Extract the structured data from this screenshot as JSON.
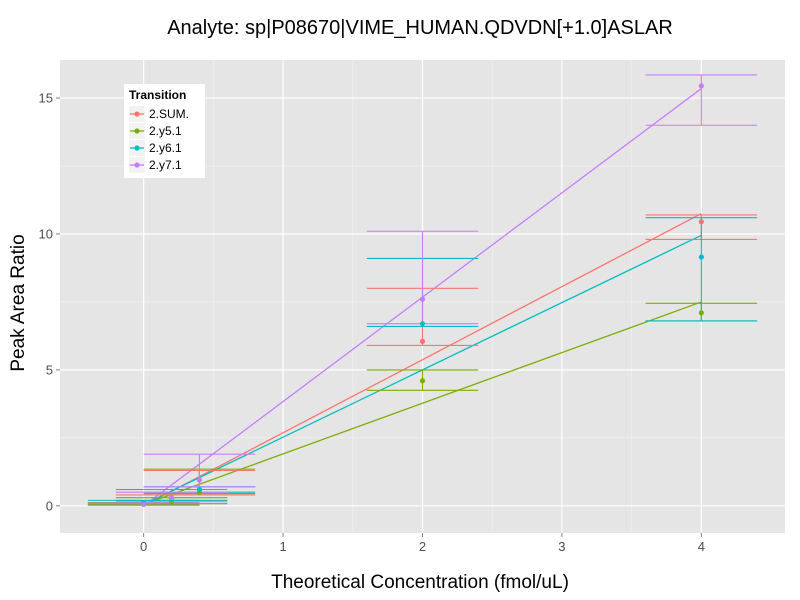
{
  "chart_data": {
    "type": "scatter",
    "title": "Analyte: sp|P08670|VIME_HUMAN.QDVDN[+1.0]ASLAR",
    "xlabel": "Theoretical Concentration (fmol/uL)",
    "ylabel": "Peak Area Ratio",
    "xlim": [
      -0.6,
      4.6
    ],
    "ylim": [
      -1.0,
      16.4
    ],
    "x_ticks": [
      0,
      1,
      2,
      3,
      4
    ],
    "x_tick_labels": [
      "0",
      "1",
      "2",
      "3",
      "4"
    ],
    "y_ticks": [
      0,
      5,
      10,
      15
    ],
    "y_tick_labels": [
      "0",
      "5",
      "10",
      "15"
    ],
    "grid": true,
    "legend": {
      "title": "Transition",
      "placement": "top-left"
    },
    "series": [
      {
        "name": "2.SUM.",
        "color": "#F8766D",
        "points": [
          {
            "x": 0,
            "y": 0.05,
            "ymin": 0.02,
            "ymax": 0.08
          },
          {
            "x": 0.2,
            "y": 0.3,
            "ymin": 0.2,
            "ymax": 0.4
          },
          {
            "x": 0.4,
            "y": 0.6,
            "ymin": 0.4,
            "ymax": 1.3
          },
          {
            "x": 2,
            "y": 6.05,
            "ymin": 5.9,
            "ymax": 8.0
          },
          {
            "x": 4,
            "y": 10.45,
            "ymin": 9.8,
            "ymax": 10.7
          }
        ],
        "fit": [
          [
            0,
            0.0
          ],
          [
            4,
            10.75
          ]
        ]
      },
      {
        "name": "2.y5.1",
        "color": "#7CAE00",
        "points": [
          {
            "x": 0,
            "y": 0.08,
            "ymin": 0.05,
            "ymax": 0.12
          },
          {
            "x": 0.2,
            "y": 0.15,
            "ymin": 0.08,
            "ymax": 0.3
          },
          {
            "x": 0.4,
            "y": 0.5,
            "ymin": 0.45,
            "ymax": 1.35
          },
          {
            "x": 2,
            "y": 4.6,
            "ymin": 4.25,
            "ymax": 5.0
          },
          {
            "x": 4,
            "y": 7.1,
            "ymin": 6.8,
            "ymax": 7.45
          }
        ],
        "fit": [
          [
            0,
            0.05
          ],
          [
            4,
            7.5
          ]
        ]
      },
      {
        "name": "2.y6.1",
        "color": "#00BFC4",
        "points": [
          {
            "x": 0,
            "y": 0.12,
            "ymin": 0.1,
            "ymax": 0.2
          },
          {
            "x": 0.2,
            "y": 0.25,
            "ymin": 0.2,
            "ymax": 0.6
          },
          {
            "x": 0.4,
            "y": 0.6,
            "ymin": 0.5,
            "ymax": 0.7
          },
          {
            "x": 2,
            "y": 6.7,
            "ymin": 6.6,
            "ymax": 9.1
          },
          {
            "x": 4,
            "y": 9.15,
            "ymin": 6.8,
            "ymax": 10.6
          }
        ],
        "fit": [
          [
            0,
            0.05
          ],
          [
            4,
            9.95
          ]
        ]
      },
      {
        "name": "2.y7.1",
        "color": "#C77CFF",
        "points": [
          {
            "x": 0,
            "y": 0.05,
            "ymin": 0.02,
            "ymax": 0.1
          },
          {
            "x": 0.2,
            "y": 0.3,
            "ymin": 0.15,
            "ymax": 0.5
          },
          {
            "x": 0.4,
            "y": 0.95,
            "ymin": 0.7,
            "ymax": 1.9
          },
          {
            "x": 2,
            "y": 7.6,
            "ymin": 6.7,
            "ymax": 10.1
          },
          {
            "x": 4,
            "y": 15.45,
            "ymin": 14.0,
            "ymax": 15.85
          }
        ],
        "fit": [
          [
            0,
            0.0
          ],
          [
            4,
            15.35
          ]
        ]
      }
    ]
  }
}
